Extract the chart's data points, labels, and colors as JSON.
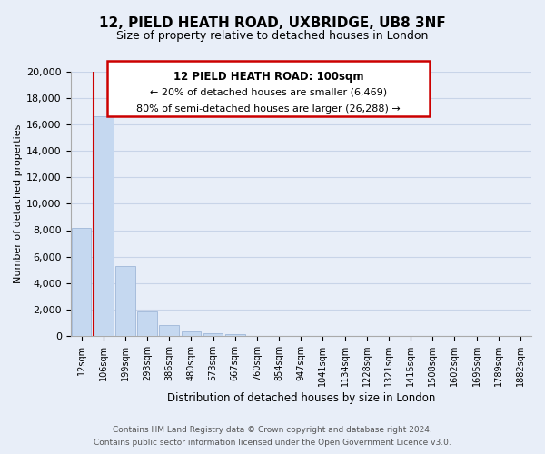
{
  "title": "12, PIELD HEATH ROAD, UXBRIDGE, UB8 3NF",
  "subtitle": "Size of property relative to detached houses in London",
  "xlabel": "Distribution of detached houses by size in London",
  "ylabel": "Number of detached properties",
  "bar_labels": [
    "12sqm",
    "106sqm",
    "199sqm",
    "293sqm",
    "386sqm",
    "480sqm",
    "573sqm",
    "667sqm",
    "760sqm",
    "854sqm",
    "947sqm",
    "1041sqm",
    "1134sqm",
    "1228sqm",
    "1321sqm",
    "1415sqm",
    "1508sqm",
    "1602sqm",
    "1695sqm",
    "1789sqm",
    "1882sqm"
  ],
  "bar_values": [
    8200,
    16600,
    5300,
    1850,
    780,
    300,
    170,
    100,
    0,
    0,
    0,
    0,
    0,
    0,
    0,
    0,
    0,
    0,
    0,
    0,
    0
  ],
  "bar_color": "#c5d8f0",
  "bar_edge_color": "#a0b8d8",
  "red_line_color": "#cc0000",
  "ylim": [
    0,
    20000
  ],
  "yticks": [
    0,
    2000,
    4000,
    6000,
    8000,
    10000,
    12000,
    14000,
    16000,
    18000,
    20000
  ],
  "annotation_title": "12 PIELD HEATH ROAD: 100sqm",
  "annotation_line1": "← 20% of detached houses are smaller (6,469)",
  "annotation_line2": "80% of semi-detached houses are larger (26,288) →",
  "annotation_box_facecolor": "#ffffff",
  "annotation_box_edgecolor": "#cc0000",
  "footer_line1": "Contains HM Land Registry data © Crown copyright and database right 2024.",
  "footer_line2": "Contains public sector information licensed under the Open Government Licence v3.0.",
  "grid_color": "#c8d4e8",
  "background_color": "#e8eef8"
}
